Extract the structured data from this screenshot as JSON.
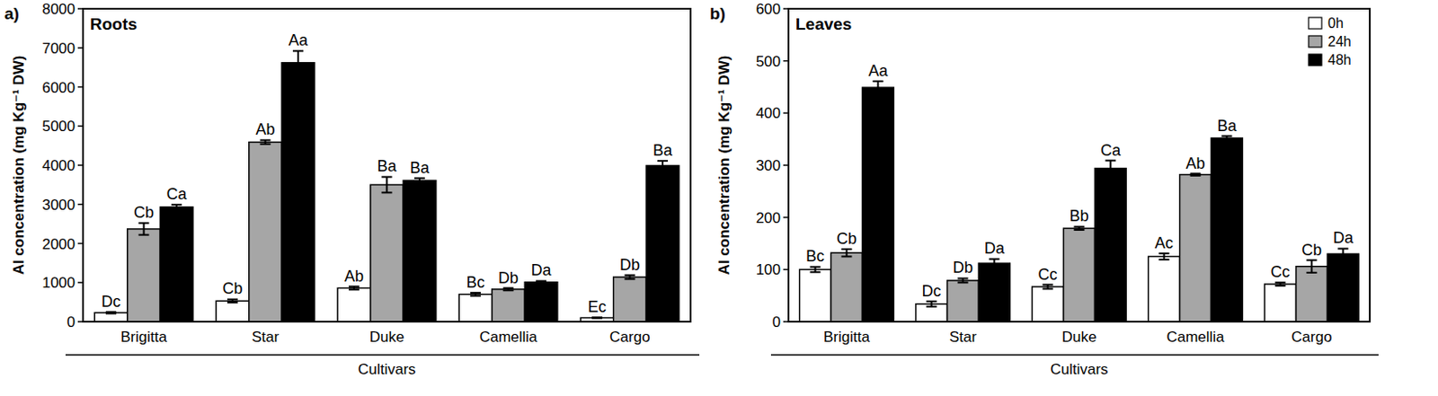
{
  "chart_data": [
    {
      "type": "bar",
      "panel": "a)",
      "title": "Roots",
      "x_label": "Cultivars",
      "y_label": "Al concentration (mg Kg⁻¹ DW)",
      "categories": [
        "Brigitta",
        "Star",
        "Duke",
        "Camellia",
        "Cargo"
      ],
      "ylim": [
        0,
        8000
      ],
      "yticks": [
        0,
        1000,
        2000,
        3000,
        4000,
        5000,
        6000,
        7000,
        8000
      ],
      "series": [
        {
          "color": "#ffffff",
          "values": [
            230,
            530,
            860,
            700,
            100
          ],
          "errors": [
            20,
            40,
            40,
            40,
            10
          ],
          "letters": [
            "Dc",
            "Cb",
            "Ab",
            "Bc",
            "Ec"
          ]
        },
        {
          "color": "#a6a6a6",
          "values": [
            2370,
            4590,
            3500,
            830,
            1140
          ],
          "errors": [
            150,
            50,
            200,
            30,
            50
          ],
          "letters": [
            "Cb",
            "Ab",
            "Ba",
            "Db",
            "Db"
          ]
        },
        {
          "color": "#000000",
          "values": [
            2930,
            6620,
            3610,
            1010,
            3990
          ],
          "errors": [
            60,
            300,
            60,
            30,
            120
          ],
          "letters": [
            "Ca",
            "Aa",
            "Ba",
            "Da",
            "Ba"
          ]
        }
      ]
    },
    {
      "type": "bar",
      "panel": "b)",
      "title": "Leaves",
      "x_label": "Cultivars",
      "y_label": "Al concentration (mg Kg⁻¹ DW)",
      "categories": [
        "Brigitta",
        "Star",
        "Duke",
        "Camellia",
        "Cargo"
      ],
      "ylim": [
        0,
        600
      ],
      "yticks": [
        0,
        100,
        200,
        300,
        400,
        500,
        600
      ],
      "legend": "top-right",
      "series": [
        {
          "name": "0h",
          "color": "#ffffff",
          "values": [
            100,
            34,
            67,
            125,
            72
          ],
          "errors": [
            5,
            5,
            4,
            6,
            3
          ],
          "letters": [
            "Bc",
            "Dc",
            "Cc",
            "Ac",
            "Cc"
          ]
        },
        {
          "name": "24h",
          "color": "#a6a6a6",
          "values": [
            132,
            79,
            179,
            282,
            106
          ],
          "errors": [
            7,
            4,
            3,
            2,
            12
          ],
          "letters": [
            "Cb",
            "Db",
            "Bb",
            "Ab",
            "Cb"
          ]
        },
        {
          "name": "48h",
          "color": "#000000",
          "values": [
            449,
            112,
            294,
            352,
            130
          ],
          "errors": [
            12,
            8,
            15,
            4,
            10
          ],
          "letters": [
            "Aa",
            "Da",
            "Ca",
            "Ba",
            "Da"
          ]
        }
      ]
    }
  ]
}
